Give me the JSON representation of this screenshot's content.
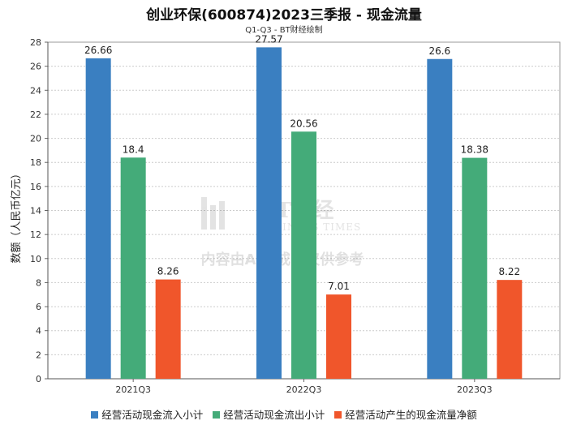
{
  "header": {
    "title": "创业环保(600874)2023三季报 - 现金流量",
    "subtitle": "Q1-Q3 - BT财经绘制"
  },
  "watermark": {
    "brand": "BT财经",
    "brand_en": "BUSINESS TIMES",
    "notice": "内容由AI生成，仅供参考"
  },
  "chart_data": {
    "type": "bar",
    "title": "创业环保(600874)2023三季报 - 现金流量",
    "subtitle": "Q1-Q3 - BT财经绘制",
    "ylabel": "数额（人民币亿元）",
    "xlabel": "",
    "ylim": [
      0,
      28
    ],
    "ytick_step": 2,
    "grid": true,
    "legend_position": "bottom",
    "categories": [
      "2021Q3",
      "2022Q3",
      "2023Q3"
    ],
    "series": [
      {
        "name": "经营活动现金流入小计",
        "color": "#3a7fc1",
        "values": [
          26.66,
          27.57,
          26.6
        ],
        "labels": [
          "26.66",
          "27.57",
          "26.6"
        ]
      },
      {
        "name": "经营活动现金流出小计",
        "color": "#44ab79",
        "values": [
          18.4,
          20.56,
          18.38
        ],
        "labels": [
          "18.4",
          "20.56",
          "18.38"
        ]
      },
      {
        "name": "经营活动产生的现金流量净额",
        "color": "#f0562b",
        "values": [
          8.26,
          7.01,
          8.22
        ],
        "labels": [
          "8.26",
          "7.01",
          "8.22"
        ]
      }
    ]
  }
}
